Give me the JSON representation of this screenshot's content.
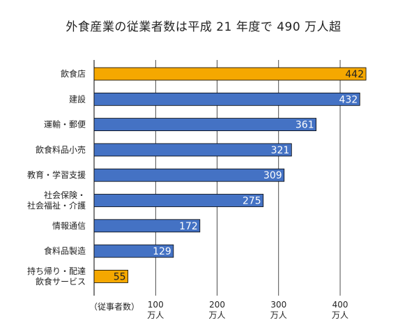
{
  "chart_data": {
    "type": "bar",
    "orientation": "horizontal",
    "title": "外食産業の従業者数は平成 21 年度で 490 万人超",
    "axis_unit_label": "（従事者数）",
    "categories": [
      [
        "飲食店"
      ],
      [
        "建設"
      ],
      [
        "運輸・郵便"
      ],
      [
        "飲食料品小売"
      ],
      [
        "教育・学習支援"
      ],
      [
        "社会保険・",
        "社会福祉・介護"
      ],
      [
        "情報通信"
      ],
      [
        "食料品製造"
      ],
      [
        "持ち帰り・配達",
        "飲食サービス"
      ]
    ],
    "values": [
      442,
      432,
      361,
      321,
      309,
      275,
      172,
      129,
      55
    ],
    "highlight": [
      true,
      false,
      false,
      false,
      false,
      false,
      false,
      false,
      true
    ],
    "xlim": [
      0,
      460
    ],
    "xticks": [
      {
        "value": 100,
        "label1": "100",
        "label2": "万人"
      },
      {
        "value": 200,
        "label1": "200",
        "label2": "万人"
      },
      {
        "value": 300,
        "label1": "300",
        "label2": "万人"
      },
      {
        "value": 400,
        "label1": "400",
        "label2": "万人"
      }
    ],
    "grid": true,
    "colors": {
      "default_bar": "#4472c4",
      "highlight_bar": "#f5a800",
      "default_label": "#ffffff",
      "highlight_label": "#222222",
      "grid": "#000000",
      "bar_stroke": "#000000"
    }
  }
}
